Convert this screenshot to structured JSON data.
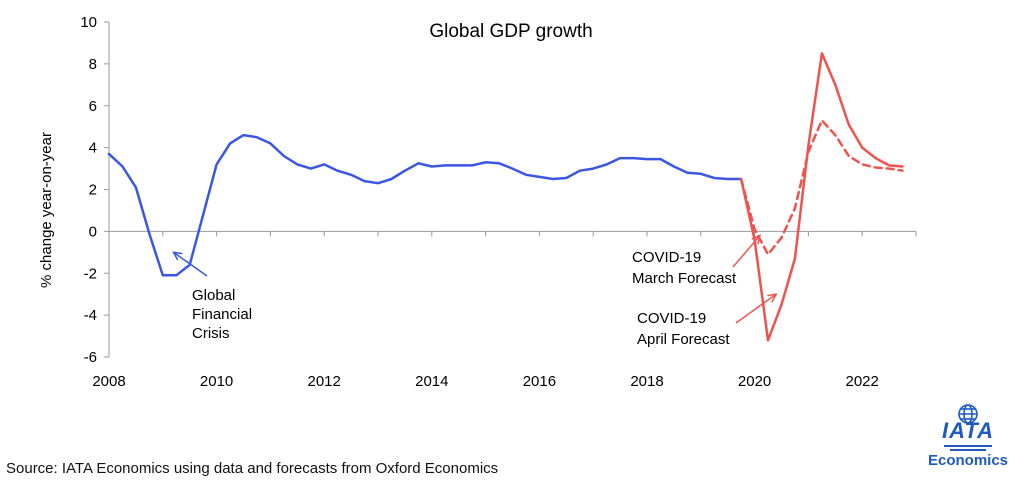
{
  "chart_data": {
    "type": "line",
    "title": "Global GDP growth",
    "xlabel": "",
    "ylabel": "% change year-on-year",
    "ylim": [
      -6,
      10
    ],
    "yticks": [
      -6,
      -4,
      -2,
      0,
      2,
      4,
      6,
      8,
      10
    ],
    "xlim": [
      2008,
      2023
    ],
    "xticks": [
      2008,
      2010,
      2012,
      2014,
      2016,
      2018,
      2020,
      2022
    ],
    "grid": false,
    "series": [
      {
        "key": "history",
        "color": "#3a56e4",
        "dashed": false,
        "x": [
          2008.0,
          2008.25,
          2008.5,
          2008.75,
          2009.0,
          2009.25,
          2009.5,
          2009.75,
          2010.0,
          2010.25,
          2010.5,
          2010.75,
          2011.0,
          2011.25,
          2011.5,
          2011.75,
          2012.0,
          2012.25,
          2012.5,
          2012.75,
          2013.0,
          2013.25,
          2013.5,
          2013.75,
          2014.0,
          2014.25,
          2014.5,
          2014.75,
          2015.0,
          2015.25,
          2015.5,
          2015.75,
          2016.0,
          2016.25,
          2016.5,
          2016.75,
          2017.0,
          2017.25,
          2017.5,
          2017.75,
          2018.0,
          2018.25,
          2018.5,
          2018.75,
          2019.0,
          2019.25,
          2019.5,
          2019.75
        ],
        "y": [
          3.7,
          3.1,
          2.1,
          -0.1,
          -2.1,
          -2.1,
          -1.6,
          0.8,
          3.2,
          4.2,
          4.6,
          4.5,
          4.2,
          3.6,
          3.2,
          3.0,
          3.2,
          2.9,
          2.7,
          2.4,
          2.3,
          2.5,
          2.9,
          3.25,
          3.1,
          3.15,
          3.15,
          3.15,
          3.3,
          3.25,
          3.0,
          2.7,
          2.6,
          2.5,
          2.55,
          2.9,
          3.0,
          3.2,
          3.5,
          3.5,
          3.45,
          3.45,
          3.1,
          2.8,
          2.75,
          2.55,
          2.5,
          2.5
        ]
      },
      {
        "key": "april",
        "color": "#ef5350",
        "dashed": false,
        "x": [
          2019.75,
          2020.0,
          2020.25,
          2020.5,
          2020.75,
          2021.0,
          2021.25,
          2021.5,
          2021.75,
          2022.0,
          2022.25,
          2022.5,
          2022.75
        ],
        "y": [
          2.5,
          -0.4,
          -5.2,
          -3.5,
          -1.3,
          4.1,
          8.5,
          7.0,
          5.1,
          4.0,
          3.5,
          3.15,
          3.1
        ]
      },
      {
        "key": "march",
        "color": "#ef5350",
        "dashed": true,
        "x": [
          2019.75,
          2020.0,
          2020.25,
          2020.5,
          2020.75,
          2021.0,
          2021.25,
          2021.5,
          2021.75,
          2022.0,
          2022.25,
          2022.5,
          2022.75
        ],
        "y": [
          2.5,
          0.1,
          -1.1,
          -0.3,
          1.1,
          3.8,
          5.3,
          4.6,
          3.6,
          3.2,
          3.05,
          3.0,
          2.9
        ]
      }
    ],
    "annotations": [
      {
        "key": "gfc",
        "lines": [
          "Global",
          "Financial",
          "Crisis"
        ],
        "color": "#3a56e4",
        "arrow_to": [
          2009.2,
          -1.0
        ]
      },
      {
        "key": "march",
        "lines": [
          "COVID-19",
          "March Forecast"
        ],
        "color": "#ef5350",
        "arrow_to": [
          2020.1,
          -0.2
        ]
      },
      {
        "key": "april",
        "lines": [
          "COVID-19",
          "April Forecast"
        ],
        "color": "#ef5350",
        "arrow_to": [
          2020.4,
          -3.0
        ]
      }
    ]
  },
  "source": "Source: IATA Economics using data and forecasts from Oxford Economics",
  "logo": {
    "name": "IATA",
    "subtitle": "Economics",
    "color": "#1d5bbf"
  }
}
